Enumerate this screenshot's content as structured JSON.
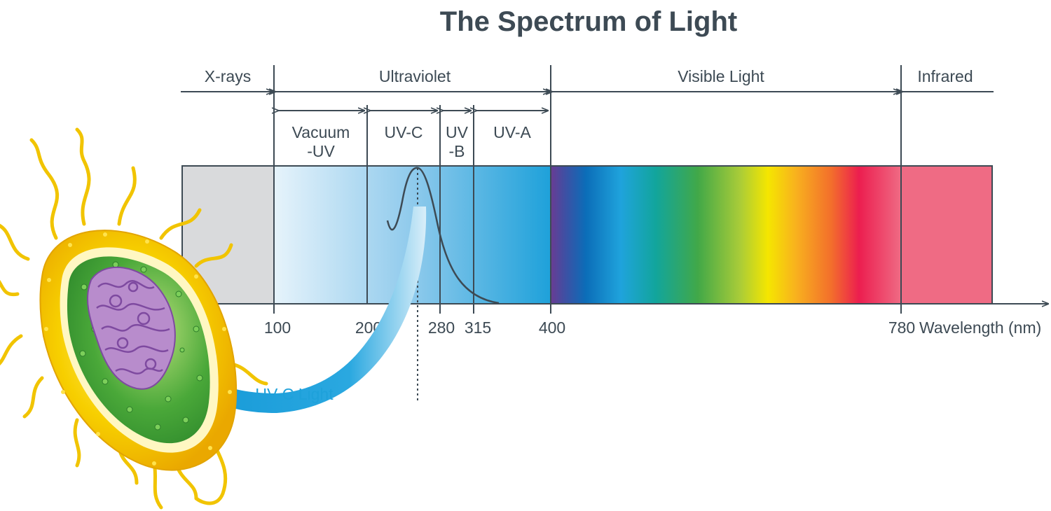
{
  "title": "The Spectrum of Light",
  "regions": {
    "xrays": "X-rays",
    "ultraviolet": "Ultraviolet",
    "visible": "Visible Light",
    "infrared": "Infrared"
  },
  "subregions": {
    "vacuum_line1": "Vacuum",
    "vacuum_line2": "-UV",
    "uvc": "UV-C",
    "uvb_line1": "UV",
    "uvb_line2": "-B",
    "uva": "UV-A"
  },
  "axis": {
    "ticks": [
      "100",
      "200",
      "280",
      "315",
      "400",
      "780"
    ],
    "label": "Wavelength (nm)"
  },
  "annotation": {
    "uvc_light": "UV-C Light"
  },
  "colors": {
    "text": "#3d4a54",
    "line": "#3d4a54",
    "xray": "#d9dadc",
    "uv_light": "#e4f2fb",
    "uv_dark": "#1ea1da",
    "infrared": "#ef6b84",
    "arrow": "#1ea1da",
    "bacteria_shell": "#f5c800",
    "bacteria_inner": "#4aa839",
    "dna": "#9a62b5"
  }
}
